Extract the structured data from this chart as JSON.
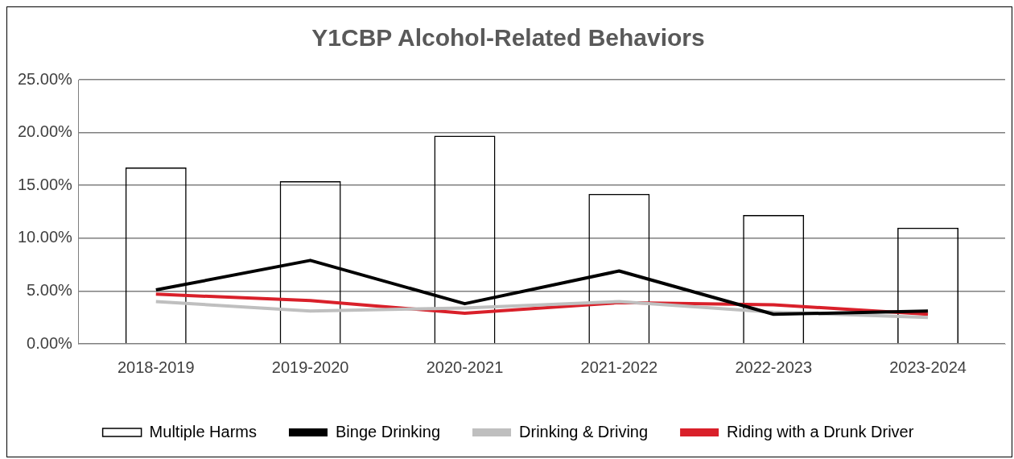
{
  "chart_data": {
    "type": "bar",
    "title": "Y1CBP Alcohol-Related Behaviors",
    "categories": [
      "2018-2019",
      "2019-2020",
      "2020-2021",
      "2021-2022",
      "2022-2023",
      "2023-2024"
    ],
    "series": [
      {
        "name": "Multiple Harms",
        "color": "#000000",
        "values": [
          16.7,
          15.4,
          19.7,
          14.2,
          12.2,
          11.0
        ]
      },
      {
        "name": "Binge Drinking",
        "type": "line",
        "color": "#000000",
        "values": [
          5.1,
          7.9,
          3.8,
          6.9,
          2.8,
          3.1
        ]
      },
      {
        "name": "Drinking & Driving",
        "type": "line",
        "color": "#bfbfbf",
        "values": [
          4.0,
          3.1,
          3.4,
          4.0,
          3.0,
          2.5
        ]
      },
      {
        "name": "Riding with a Drunk Driver",
        "type": "line",
        "color": "#d9202a",
        "values": [
          4.7,
          4.1,
          2.9,
          3.9,
          3.7,
          2.8
        ]
      }
    ],
    "ylim": [
      0,
      25
    ],
    "yticks": [
      {
        "value": 0,
        "label": "0.00%"
      },
      {
        "value": 5,
        "label": "5.00%"
      },
      {
        "value": 10,
        "label": "10.00%"
      },
      {
        "value": 15,
        "label": "15.00%"
      },
      {
        "value": 20,
        "label": "20.00%"
      },
      {
        "value": 25,
        "label": "25.00%"
      }
    ],
    "grid": "y",
    "legend": "bottom",
    "marker": "none"
  }
}
